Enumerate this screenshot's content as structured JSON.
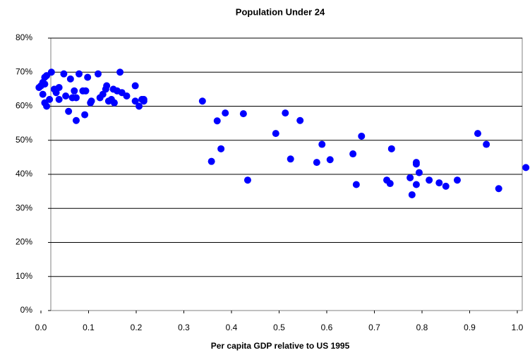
{
  "chart_data": {
    "type": "scatter",
    "title": "Population Under 24",
    "xlabel": "Per capita GDP relative to US 1995",
    "color": "#0000ff",
    "grid": true,
    "xlim": [
      0,
      1.0
    ],
    "xticks": [
      {
        "value": 0,
        "label": "0.0"
      },
      0.1,
      0.2,
      0.3,
      0.4,
      0.5,
      0.6,
      0.7,
      0.8,
      0.9,
      {
        "value": 1.0,
        "label": "1.0"
      }
    ],
    "ylim": [
      0,
      80
    ],
    "yticks": [
      {
        "value": 0,
        "label": "0%"
      },
      {
        "value": 10,
        "label": "10%"
      },
      {
        "value": 20,
        "label": "20%"
      },
      {
        "value": 30,
        "label": "30%"
      },
      {
        "value": 40,
        "label": "40%"
      },
      {
        "value": 50,
        "label": "50%"
      },
      {
        "value": 60,
        "label": "60%"
      },
      {
        "value": 70,
        "label": "70%"
      },
      {
        "value": 80,
        "label": "80%"
      }
    ],
    "x": [
      -0.004,
      0.0,
      0.004,
      0.008,
      0.012,
      0.008,
      0.004,
      0.008,
      0.012,
      0.018,
      0.022,
      0.028,
      0.032,
      0.038,
      0.038,
      0.048,
      0.052,
      0.058,
      0.062,
      0.066,
      0.07,
      0.074,
      0.074,
      0.08,
      0.088,
      0.094,
      0.098,
      0.092,
      0.104,
      0.106,
      0.12,
      0.124,
      0.13,
      0.138,
      0.136,
      0.142,
      0.148,
      0.152,
      0.154,
      0.16,
      0.166,
      0.17,
      0.18,
      0.198,
      0.198,
      0.206,
      0.212,
      0.216,
      0.216,
      0.339,
      0.358,
      0.37,
      0.378,
      0.387,
      0.425,
      0.434,
      0.493,
      0.513,
      0.524,
      0.544,
      0.579,
      0.59,
      0.607,
      0.655,
      0.662,
      0.673,
      0.726,
      0.733,
      0.736,
      0.775,
      0.779,
      0.788,
      0.788,
      0.788,
      0.794,
      0.815,
      0.836,
      0.85,
      0.874,
      0.917,
      0.935,
      0.961,
      1.018
    ],
    "values": [
      65.5,
      66,
      67,
      68.5,
      69,
      66.5,
      63.5,
      61,
      60,
      62,
      70,
      65,
      64,
      65.5,
      62,
      69.5,
      63,
      58.5,
      68,
      62.5,
      64.5,
      55.8,
      62.5,
      69.5,
      64.5,
      64.5,
      68.5,
      57.5,
      61,
      61.5,
      69.5,
      62.5,
      63.5,
      66,
      65,
      61.5,
      62,
      65,
      61,
      64.5,
      70,
      64,
      63,
      66,
      61.5,
      60,
      62,
      62,
      61.5,
      61.5,
      43.8,
      55.7,
      47.5,
      58,
      57.8,
      38.3,
      52,
      58,
      44.5,
      55.8,
      43.5,
      48.8,
      44.3,
      46,
      37,
      51.2,
      38.3,
      37.3,
      47.5,
      39,
      34,
      43.5,
      43,
      37,
      40.5,
      38.3,
      37.5,
      36.5,
      38.3,
      52,
      48.8,
      35.8,
      42
    ]
  }
}
